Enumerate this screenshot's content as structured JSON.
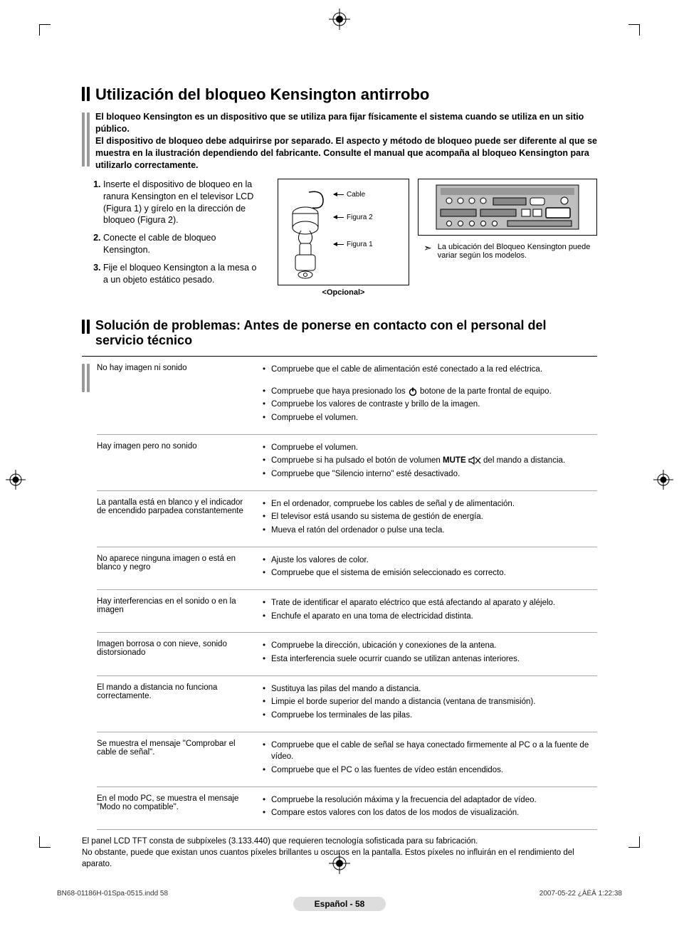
{
  "colors": {
    "text": "#000000",
    "rule": "#aaaaaa",
    "pill": "#dddddd"
  },
  "section1": {
    "title": "Utilización del bloqueo Kensington antirrobo",
    "intro": "El bloqueo Kensington es un dispositivo que se utiliza para fijar físicamente el sistema cuando se utiliza en un sitio público.\nEl dispositivo de bloqueo debe adquirirse por separado. El aspecto y método de bloqueo puede ser diferente al que se muestra en la ilustración dependiendo del fabricante. Consulte el manual que acompaña al bloqueo Kensington para utilizarlo correctamente.",
    "steps": [
      "Inserte el dispositivo de bloqueo en la ranura Kensington en el televisor LCD (Figura 1) y gírelo en la dirección de bloqueo (Figura 2).",
      "Conecte el cable de bloqueo Kensington.",
      "Fije el bloqueo Kensington a la mesa o a un objeto estático pesado."
    ],
    "figure": {
      "cable": "Cable",
      "fig2": "Figura 2",
      "fig1": "Figura 1",
      "optional": "<Opcional>",
      "note": "La ubicación del Bloqueo Kensington puede variar según los modelos."
    }
  },
  "section2": {
    "title": "Solución de problemas: Antes de ponerse en contacto con el personal del servicio técnico",
    "rows": [
      {
        "problem": "No hay imagen ni sonido",
        "solutions": [
          "Compruebe que el cable de alimentación esté conectado a la red eléctrica.",
          "Compruebe que haya presionado los {POWER} botone de la parte frontal de equipo.",
          "Compruebe los valores de contraste y brillo de la imagen.",
          "Compruebe el volumen."
        ]
      },
      {
        "problem": "Hay imagen pero no sonido",
        "solutions": [
          "Compruebe el volumen.",
          "Compruebe si ha pulsado el botón de volumen MUTE {MUTE} del mando a distancia.",
          "Compruebe que \"Silencio interno\" esté desactivado."
        ]
      },
      {
        "problem": "La pantalla está en blanco y el indicador de encendido parpadea constantemente",
        "solutions": [
          "En el ordenador, compruebe los cables de señal y de alimentación.",
          "El televisor está usando su sistema de gestión de energía.",
          "Mueva el ratón del ordenador o pulse una tecla."
        ]
      },
      {
        "problem": "No aparece ninguna imagen o está en blanco y negro",
        "solutions": [
          "Ajuste los valores de color.",
          "Compruebe que el sistema de emisión seleccionado es correcto."
        ]
      },
      {
        "problem": "Hay interferencias en el sonido o en la imagen",
        "solutions": [
          "Trate de identificar el aparato eléctrico que está afectando al aparato y aléjelo.",
          "Enchufe el aparato en una toma de electricidad distinta."
        ]
      },
      {
        "problem": "Imagen borrosa o con nieve, sonido distorsionado",
        "solutions": [
          "Compruebe la dirección, ubicación y conexiones de la antena.",
          "Esta interferencia suele ocurrir cuando se utilizan antenas interiores."
        ]
      },
      {
        "problem": "El mando a distancia no funciona correctamente.",
        "solutions": [
          "Sustituya las pilas del mando a distancia.",
          "Limpie el borde superior del mando a distancia (ventana de transmisión).",
          "Compruebe los terminales de las pilas."
        ]
      },
      {
        "problem": "Se muestra el mensaje \"Comprobar el cable de señal\".",
        "solutions": [
          "Compruebe que el cable de señal se haya conectado firmemente al PC o a la fuente de vídeo.",
          "Compruebe que el PC o las fuentes de vídeo están encendidos."
        ]
      },
      {
        "problem": "En el modo PC, se muestra el mensaje \"Modo no compatible\".",
        "solutions": [
          "Compruebe la resolución máxima y la frecuencia del adaptador de vídeo.",
          "Compare estos valores con los datos de los modos de visualización."
        ]
      }
    ],
    "footnote": "El panel LCD TFT consta de subpíxeles (3.133.440) que requieren tecnología sofisticada para su fabricación.\nNo obstante, puede que existan unos cuantos píxeles brillantes u oscuros en la pantalla. Estos píxeles no influirán en el rendimiento del aparato."
  },
  "pagenum": "Español - 58",
  "footer_left": "BN68-01186H-01Spa-0515.indd   58",
  "footer_right": "2007-05-22   ¿ÀÈÄ 1:22:38",
  "icons": {
    "mute_bold": "MUTE"
  }
}
